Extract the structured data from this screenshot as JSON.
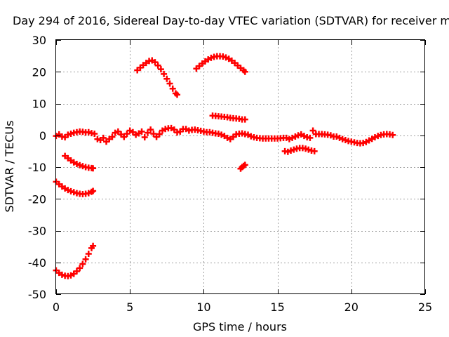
{
  "chart_data": {
    "type": "scatter",
    "title": "Day 294 of 2016, Sidereal Day-to-day VTEC variation (SDTVAR) for receiver m",
    "xlabel": "GPS time / hours",
    "ylabel": "SDTVAR / TECUs",
    "xlim": [
      0,
      25
    ],
    "ylim": [
      -50,
      30
    ],
    "x_ticks": [
      0,
      5,
      10,
      15,
      20,
      25
    ],
    "y_ticks": [
      -50,
      -40,
      -30,
      -20,
      -10,
      0,
      10,
      20,
      30
    ],
    "grid": true,
    "legend": "none",
    "marker": "plus",
    "series_color": "#ff0000",
    "series": [
      {
        "points": [
          [
            0.0,
            -42.5
          ],
          [
            0.2,
            -43.3
          ],
          [
            0.4,
            -43.9
          ],
          [
            0.6,
            -44.2
          ],
          [
            0.8,
            -44.3
          ],
          [
            1.0,
            -44.1
          ],
          [
            1.2,
            -43.6
          ],
          [
            1.4,
            -42.8
          ],
          [
            1.6,
            -41.8
          ],
          [
            1.8,
            -40.5
          ],
          [
            2.0,
            -39.0
          ],
          [
            2.2,
            -37.3
          ],
          [
            2.4,
            -35.5
          ],
          [
            2.5,
            -34.8
          ]
        ]
      },
      {
        "points": [
          [
            0.0,
            -14.6
          ],
          [
            0.2,
            -15.4
          ],
          [
            0.4,
            -16.1
          ],
          [
            0.6,
            -16.7
          ],
          [
            0.8,
            -17.2
          ],
          [
            1.0,
            -17.6
          ],
          [
            1.2,
            -17.9
          ],
          [
            1.4,
            -18.2
          ],
          [
            1.6,
            -18.4
          ],
          [
            1.8,
            -18.5
          ],
          [
            2.0,
            -18.4
          ],
          [
            2.2,
            -18.2
          ],
          [
            2.4,
            -17.8
          ],
          [
            2.5,
            -17.5
          ]
        ]
      },
      {
        "points": [
          [
            0.6,
            -6.5
          ],
          [
            0.8,
            -7.2
          ],
          [
            1.0,
            -7.9
          ],
          [
            1.2,
            -8.5
          ],
          [
            1.4,
            -9.0
          ],
          [
            1.6,
            -9.4
          ],
          [
            1.8,
            -9.7
          ],
          [
            2.0,
            -10.0
          ],
          [
            2.2,
            -10.2
          ],
          [
            2.4,
            -10.3
          ],
          [
            2.5,
            -10.4
          ]
        ]
      },
      {
        "points": [
          [
            0.0,
            -0.2
          ],
          [
            0.2,
            0.3
          ],
          [
            0.4,
            -0.4
          ],
          [
            0.6,
            -0.6
          ],
          [
            0.8,
            0.2
          ],
          [
            1.0,
            0.5
          ],
          [
            1.2,
            0.8
          ],
          [
            1.4,
            1.0
          ],
          [
            1.6,
            1.2
          ],
          [
            1.8,
            1.1
          ],
          [
            2.0,
            0.9
          ],
          [
            2.2,
            1.0
          ],
          [
            2.4,
            0.7
          ],
          [
            2.6,
            0.5
          ],
          [
            2.8,
            -1.2
          ],
          [
            3.0,
            -1.5
          ],
          [
            3.2,
            -0.8
          ],
          [
            3.4,
            -2.0
          ],
          [
            3.6,
            -1.2
          ],
          [
            3.8,
            -0.5
          ],
          [
            4.0,
            0.8
          ],
          [
            4.2,
            1.2
          ],
          [
            4.4,
            0.3
          ],
          [
            4.6,
            -0.5
          ],
          [
            4.8,
            0.5
          ],
          [
            5.0,
            1.5
          ],
          [
            5.2,
            1.0
          ],
          [
            5.4,
            0.2
          ],
          [
            5.6,
            0.6
          ],
          [
            5.8,
            1.2
          ],
          [
            6.0,
            -0.6
          ],
          [
            6.2,
            0.8
          ],
          [
            6.4,
            1.8
          ],
          [
            6.6,
            0.5
          ],
          [
            6.8,
            -0.5
          ],
          [
            7.0,
            0.4
          ],
          [
            7.2,
            1.5
          ],
          [
            7.4,
            2.0
          ],
          [
            7.6,
            2.2
          ],
          [
            7.8,
            2.3
          ],
          [
            8.0,
            1.8
          ],
          [
            8.2,
            0.9
          ],
          [
            8.4,
            1.2
          ],
          [
            8.6,
            2.0
          ],
          [
            8.8,
            2.0
          ],
          [
            9.0,
            1.5
          ],
          [
            9.2,
            1.7
          ],
          [
            9.4,
            1.8
          ],
          [
            9.6,
            1.6
          ],
          [
            9.8,
            1.4
          ],
          [
            10.0,
            1.2
          ],
          [
            10.2,
            1.0
          ],
          [
            10.4,
            1.0
          ],
          [
            10.6,
            0.8
          ],
          [
            10.8,
            0.6
          ],
          [
            11.0,
            0.5
          ],
          [
            11.2,
            0.2
          ],
          [
            11.4,
            -0.2
          ],
          [
            11.6,
            -0.8
          ],
          [
            11.8,
            -1.2
          ],
          [
            12.0,
            -0.5
          ],
          [
            12.2,
            0.3
          ],
          [
            12.4,
            0.5
          ],
          [
            12.6,
            0.6
          ],
          [
            12.8,
            0.4
          ],
          [
            13.0,
            0.2
          ],
          [
            13.2,
            -0.3
          ],
          [
            13.4,
            -0.6
          ],
          [
            13.6,
            -0.8
          ],
          [
            13.8,
            -0.9
          ],
          [
            14.0,
            -1.0
          ],
          [
            14.2,
            -1.0
          ],
          [
            14.4,
            -1.0
          ],
          [
            14.6,
            -1.0
          ],
          [
            14.8,
            -1.0
          ],
          [
            15.0,
            -1.0
          ],
          [
            15.2,
            -0.9
          ],
          [
            15.4,
            -0.8
          ],
          [
            15.6,
            -0.8
          ],
          [
            15.8,
            -1.2
          ],
          [
            16.0,
            -0.8
          ],
          [
            16.2,
            -0.4
          ],
          [
            16.4,
            0.0
          ],
          [
            16.6,
            0.3
          ],
          [
            16.8,
            -0.2
          ],
          [
            17.0,
            -0.6
          ],
          [
            17.2,
            -0.8
          ],
          [
            17.4,
            1.5
          ],
          [
            17.6,
            0.4
          ],
          [
            17.8,
            0.4
          ],
          [
            18.0,
            0.4
          ],
          [
            18.2,
            0.3
          ],
          [
            18.4,
            0.2
          ],
          [
            18.6,
            0.0
          ],
          [
            18.8,
            -0.4
          ],
          [
            19.0,
            -0.4
          ],
          [
            19.2,
            -0.8
          ],
          [
            19.4,
            -1.2
          ],
          [
            19.6,
            -1.5
          ],
          [
            19.8,
            -1.8
          ],
          [
            20.0,
            -2.0
          ],
          [
            20.2,
            -2.2
          ],
          [
            20.4,
            -2.4
          ],
          [
            20.6,
            -2.5
          ],
          [
            20.8,
            -2.4
          ],
          [
            21.0,
            -2.1
          ],
          [
            21.2,
            -1.6
          ],
          [
            21.4,
            -1.1
          ],
          [
            21.6,
            -0.6
          ],
          [
            21.8,
            -0.2
          ],
          [
            22.0,
            0.1
          ],
          [
            22.2,
            0.3
          ],
          [
            22.4,
            0.4
          ],
          [
            22.6,
            0.3
          ],
          [
            22.8,
            0.1
          ]
        ]
      },
      {
        "points": [
          [
            15.5,
            -5.0
          ],
          [
            15.7,
            -5.2
          ],
          [
            15.9,
            -4.8
          ],
          [
            16.1,
            -4.5
          ],
          [
            16.3,
            -4.2
          ],
          [
            16.5,
            -4.0
          ],
          [
            16.7,
            -4.0
          ],
          [
            16.9,
            -4.2
          ],
          [
            17.1,
            -4.5
          ],
          [
            17.3,
            -4.8
          ],
          [
            17.5,
            -5.0
          ]
        ]
      },
      {
        "points": [
          [
            5.5,
            20.5
          ],
          [
            5.7,
            21.3
          ],
          [
            5.9,
            22.1
          ],
          [
            6.1,
            22.8
          ],
          [
            6.3,
            23.4
          ],
          [
            6.5,
            23.6
          ],
          [
            6.7,
            23.0
          ],
          [
            6.9,
            22.0
          ],
          [
            7.1,
            20.8
          ],
          [
            7.3,
            19.3
          ],
          [
            7.5,
            17.8
          ],
          [
            7.7,
            16.3
          ],
          [
            7.9,
            14.7
          ],
          [
            8.1,
            13.2
          ],
          [
            8.2,
            12.8
          ]
        ]
      },
      {
        "points": [
          [
            9.5,
            21.0
          ],
          [
            9.7,
            21.8
          ],
          [
            9.9,
            22.6
          ],
          [
            10.1,
            23.3
          ],
          [
            10.3,
            23.9
          ],
          [
            10.5,
            24.4
          ],
          [
            10.7,
            24.7
          ],
          [
            10.9,
            24.9
          ],
          [
            11.1,
            24.9
          ],
          [
            11.3,
            24.8
          ],
          [
            11.5,
            24.5
          ],
          [
            11.7,
            24.1
          ],
          [
            11.9,
            23.5
          ],
          [
            12.1,
            22.8
          ],
          [
            12.3,
            22.0
          ],
          [
            12.5,
            21.2
          ],
          [
            12.7,
            20.5
          ],
          [
            12.8,
            20.0
          ]
        ]
      },
      {
        "points": [
          [
            10.6,
            6.2
          ],
          [
            10.8,
            6.1
          ],
          [
            11.0,
            6.0
          ],
          [
            11.2,
            5.9
          ],
          [
            11.4,
            5.8
          ],
          [
            11.6,
            5.7
          ],
          [
            11.8,
            5.5
          ],
          [
            12.0,
            5.4
          ],
          [
            12.2,
            5.3
          ],
          [
            12.4,
            5.2
          ],
          [
            12.6,
            5.0
          ],
          [
            12.8,
            5.0
          ]
        ]
      },
      {
        "points": [
          [
            12.5,
            -10.5
          ],
          [
            12.6,
            -10.0
          ],
          [
            12.7,
            -9.6
          ],
          [
            12.8,
            -9.3
          ]
        ]
      }
    ]
  }
}
